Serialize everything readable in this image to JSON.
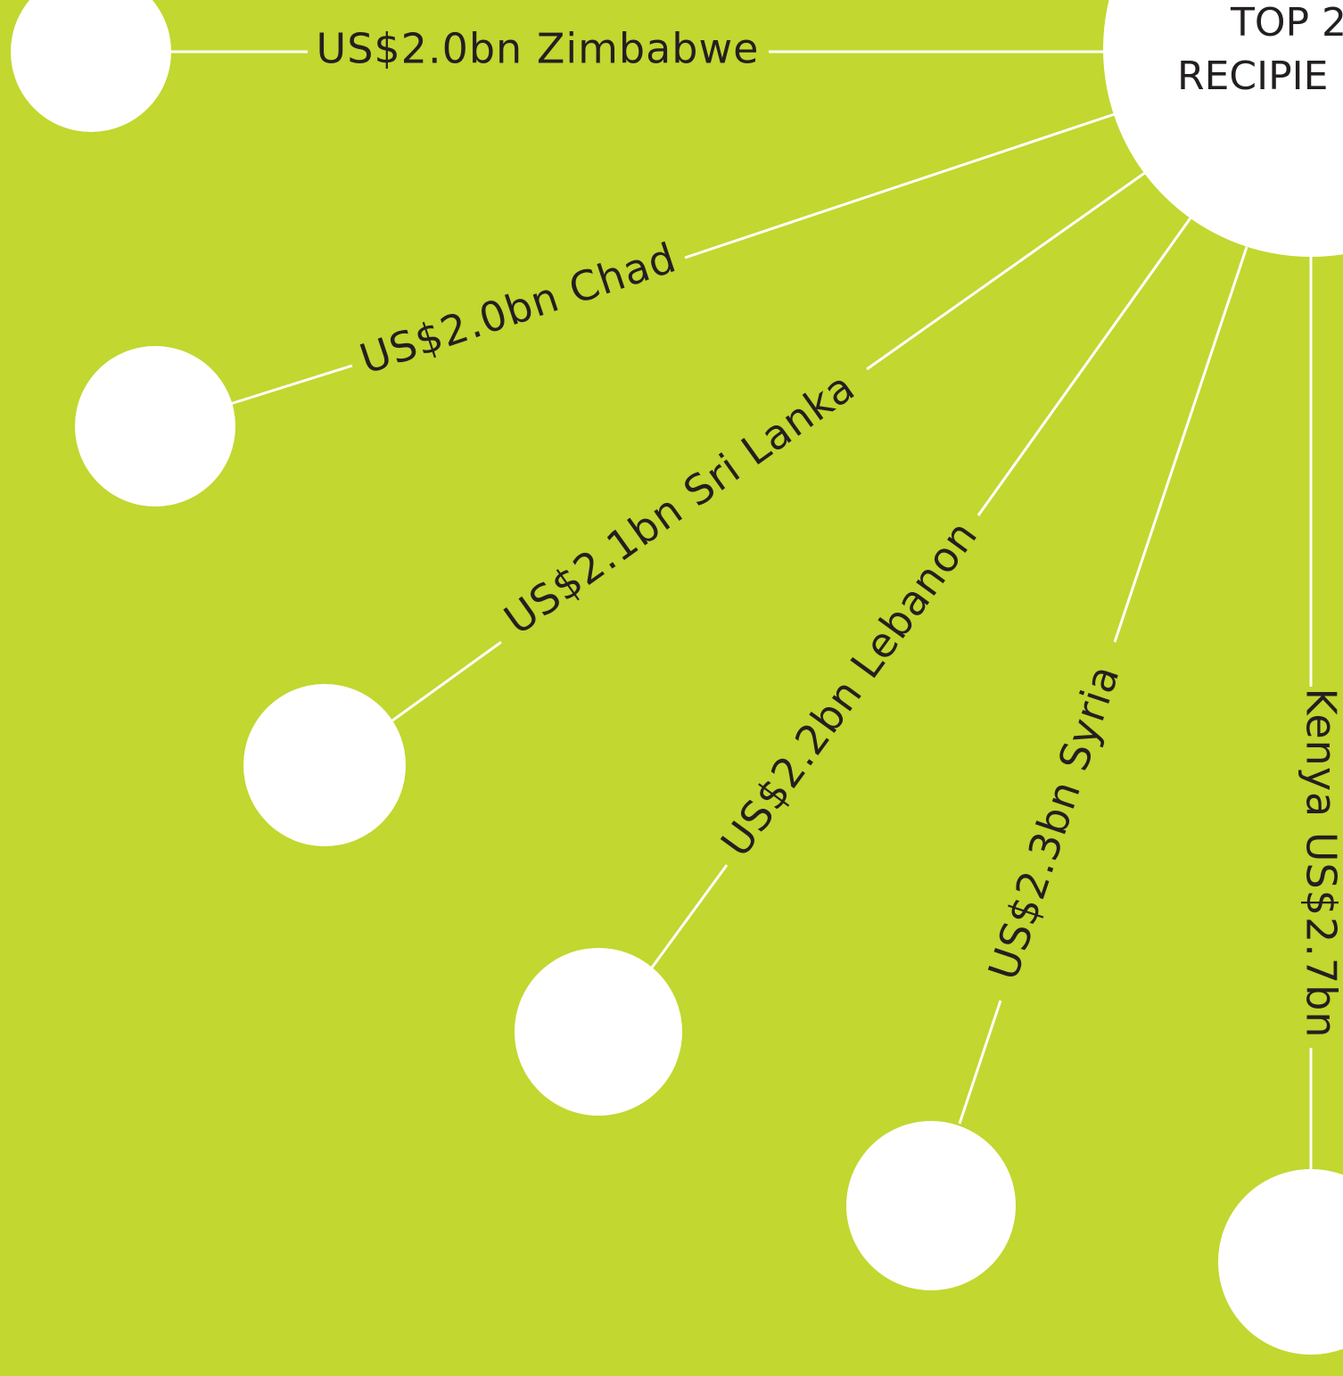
{
  "colors": {
    "background": "#c2d72f",
    "node": "#ffffff",
    "line": "#ffffff",
    "text": "#231f20"
  },
  "hub": {
    "title_line1": "TOP 2",
    "title_line2": "RECIPIE"
  },
  "recipients": [
    {
      "id": "zimbabwe",
      "label": "US$2.0bn Zimbabwe"
    },
    {
      "id": "chad",
      "label": "US$2.0bn Chad"
    },
    {
      "id": "sri-lanka",
      "label": "US$2.1bn  Sri Lanka"
    },
    {
      "id": "lebanon",
      "label": "US$2.2bn Lebanon"
    },
    {
      "id": "syria",
      "label": "US$2.3bn Syria"
    },
    {
      "id": "kenya",
      "label": "Kenya US$2.7bn"
    }
  ]
}
